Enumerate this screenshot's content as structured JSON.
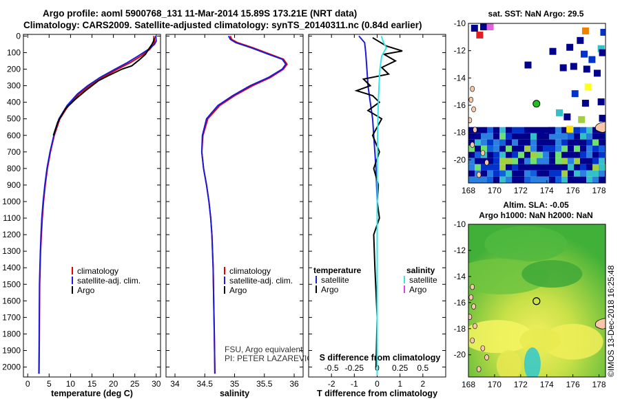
{
  "header": {
    "line1": "Argo profile: aoml 5900768_131 11-Mar-2014 15.89S 173.21E (NRT data)",
    "line2": "Climatology: CARS2009. Satellite-adjusted climatology: synTS_20140311.nc (0.84d earlier)"
  },
  "depth_ticks": [
    0,
    100,
    200,
    300,
    400,
    500,
    600,
    700,
    800,
    900,
    1000,
    1100,
    1200,
    1300,
    1400,
    1500,
    1600,
    1700,
    1800,
    1900,
    2000
  ],
  "colors": {
    "climatology": "#e00000",
    "satellite": "#1a1adc",
    "argo": "#000000",
    "sat_salinity": "#33e6e6",
    "argo_salinity": "#e040e0"
  },
  "chart_data": [
    {
      "type": "line",
      "panel": "temperature",
      "xlabel": "temperature (deg C)",
      "ylabel": "",
      "xlim": [
        -1,
        31
      ],
      "ylim": [
        2060,
        -10
      ],
      "xticks": [
        0,
        5,
        10,
        15,
        20,
        25,
        30
      ],
      "legend": [
        "climatology",
        "satellite-adj. clim.",
        "Argo"
      ],
      "series": [
        {
          "name": "climatology",
          "color": "#e00000",
          "x": [
            29.4,
            29.5,
            29.6,
            29.4,
            28.5,
            26.5,
            24.0,
            21.0,
            17.5,
            14.5,
            12.0,
            9.5,
            7.5,
            6.2,
            5.3,
            4.6,
            4.1,
            3.7,
            3.4,
            3.2,
            3.0,
            2.9,
            2.8,
            2.75,
            2.7,
            2.65
          ],
          "y": [
            0,
            10,
            30,
            50,
            80,
            120,
            160,
            200,
            250,
            300,
            350,
            420,
            500,
            600,
            700,
            800,
            900,
            1000,
            1100,
            1200,
            1300,
            1400,
            1500,
            1700,
            1900,
            2040
          ]
        },
        {
          "name": "satellite-adj. clim.",
          "color": "#1a1adc",
          "x": [
            29.8,
            29.9,
            30.0,
            29.6,
            28.2,
            25.8,
            23.3,
            20.4,
            16.9,
            14.0,
            11.6,
            9.2,
            7.3,
            6.1,
            5.2,
            4.5,
            4.0,
            3.6,
            3.3,
            3.1,
            2.95,
            2.85,
            2.75,
            2.7,
            2.65,
            2.6
          ],
          "y": [
            0,
            10,
            30,
            50,
            80,
            120,
            160,
            200,
            250,
            300,
            350,
            420,
            500,
            600,
            700,
            800,
            900,
            1000,
            1100,
            1200,
            1300,
            1400,
            1500,
            1700,
            1900,
            2040
          ]
        },
        {
          "name": "Argo",
          "color": "#000000",
          "x": [
            29.5,
            29.4,
            29.0,
            28.2,
            27.5,
            26.2,
            24.3,
            22.0,
            18.8,
            16.5,
            13.5,
            11.2,
            8.8,
            7.0,
            6.0
          ],
          "y": [
            10,
            30,
            50,
            80,
            110,
            140,
            180,
            200,
            240,
            270,
            330,
            380,
            440,
            520,
            600
          ]
        }
      ]
    },
    {
      "type": "line",
      "panel": "salinity",
      "xlabel": "salinity",
      "ylabel": "",
      "xlim": [
        33.85,
        36.15
      ],
      "ylim": [
        2060,
        -10
      ],
      "xticks": [
        34,
        34.5,
        35,
        35.5,
        36
      ],
      "xticklabels": [
        "34",
        "34.5",
        "35",
        "35.5",
        "36"
      ],
      "legend": [
        "climatology",
        "satellite-adj. clim.",
        "Argo"
      ],
      "annotations": [
        "FSU, Argo equivalent",
        "PI: PETER LAZAREVICH"
      ],
      "series": [
        {
          "name": "climatology",
          "color": "#e00000",
          "x": [
            34.93,
            34.95,
            35.05,
            35.3,
            35.6,
            35.82,
            35.88,
            35.82,
            35.6,
            35.3,
            35.0,
            34.75,
            34.55,
            34.47,
            34.45,
            34.48,
            34.53,
            34.57,
            34.6,
            34.62,
            34.64,
            34.65,
            34.66,
            34.67
          ],
          "y": [
            0,
            20,
            40,
            70,
            110,
            140,
            170,
            200,
            250,
            300,
            360,
            420,
            500,
            600,
            700,
            800,
            900,
            1000,
            1100,
            1200,
            1400,
            1600,
            1800,
            2040
          ]
        },
        {
          "name": "satellite-adj. clim.",
          "color": "#1a1adc",
          "x": [
            34.9,
            34.93,
            35.02,
            35.27,
            35.57,
            35.8,
            35.86,
            35.8,
            35.57,
            35.26,
            34.97,
            34.72,
            34.53,
            34.46,
            34.45,
            34.48,
            34.53,
            34.57,
            34.6,
            34.62,
            34.64,
            34.65,
            34.66,
            34.67
          ],
          "y": [
            0,
            20,
            40,
            70,
            110,
            140,
            170,
            200,
            250,
            300,
            360,
            420,
            500,
            600,
            700,
            800,
            900,
            1000,
            1100,
            1200,
            1400,
            1600,
            1800,
            2040
          ]
        }
      ]
    },
    {
      "type": "line",
      "panel": "difference",
      "xlabel": "T difference from climatology",
      "xlabel_top": "S difference from climatology",
      "xlim": [
        -3,
        3
      ],
      "ylim": [
        2060,
        -10
      ],
      "xticks": [
        -2,
        -1,
        0,
        1,
        2
      ],
      "xticklabels": [
        "-2",
        "-1",
        "0",
        "1",
        "2"
      ],
      "xticks_top": [
        -0.5,
        -0.25,
        0,
        0.25,
        0.5
      ],
      "xticklabels_top": [
        "-0.5",
        "-0.25",
        "0",
        "0.25",
        "0.5"
      ],
      "legend_left_title": "temperature",
      "legend_right_title": "salinity",
      "legend_left": [
        "satellite",
        "Argo"
      ],
      "legend_right": [
        "satellite",
        "Argo"
      ],
      "series": [
        {
          "name": "T satellite",
          "color": "#1a1adc",
          "x": [
            -0.8,
            -0.55,
            -0.5,
            -0.45,
            -0.4,
            -0.3,
            -0.2,
            -0.15,
            -0.05,
            0,
            0
          ],
          "y": [
            0,
            40,
            100,
            200,
            300,
            400,
            500,
            600,
            800,
            1000,
            2040
          ]
        },
        {
          "name": "T Argo",
          "color": "#000000",
          "x": [
            -0.2,
            0.4,
            1.1,
            0.3,
            0.8,
            0.2,
            0.5,
            -0.6,
            -0.3,
            -0.9,
            -0.2,
            0.1,
            -0.4,
            0.2,
            -0.2,
            0.1,
            -0.15,
            0.05,
            0,
            0.1,
            -0.15,
            -0.1,
            0,
            -0.05
          ],
          "y": [
            10,
            60,
            90,
            110,
            150,
            190,
            230,
            260,
            300,
            330,
            360,
            400,
            450,
            500,
            600,
            700,
            800,
            900,
            1000,
            1100,
            1200,
            1400,
            1700,
            2000
          ]
        },
        {
          "name": "S satellite",
          "color": "#33e6e6",
          "x": [
            0.18,
            0.28,
            0.4,
            0.2,
            0.12,
            0.08,
            0.05,
            0.03,
            0.01,
            0,
            0
          ],
          "y": [
            0,
            40,
            70,
            120,
            200,
            300,
            400,
            500,
            700,
            1000,
            2040
          ]
        }
      ]
    },
    {
      "type": "heatmap",
      "panel": "sst-map",
      "title": "sat. SST: NaN Argo: 29.5",
      "xlim": [
        168,
        178.5
      ],
      "ylim": [
        -21.7,
        -10
      ],
      "xticks": [
        168,
        170,
        172,
        174,
        176,
        178
      ],
      "yticks": [
        -10,
        -12,
        -14,
        -16,
        -18,
        -20
      ],
      "float_position": {
        "lon": 173.21,
        "lat": -15.89
      }
    },
    {
      "type": "heatmap",
      "panel": "sla-map",
      "title_line1": "Altim. SLA: -0.05",
      "title_line2": "Argo h1000: NaN h2000: NaN",
      "xlim": [
        168,
        178.5
      ],
      "ylim": [
        -21.7,
        -10
      ],
      "xticks": [
        168,
        170,
        172,
        174,
        176,
        178
      ],
      "yticks": [
        -10,
        -12,
        -14,
        -16,
        -18,
        -20
      ],
      "float_position": {
        "lon": 173.21,
        "lat": -15.89
      }
    }
  ],
  "footer": "©IMOS 13-Dec-2018 16:25:48"
}
